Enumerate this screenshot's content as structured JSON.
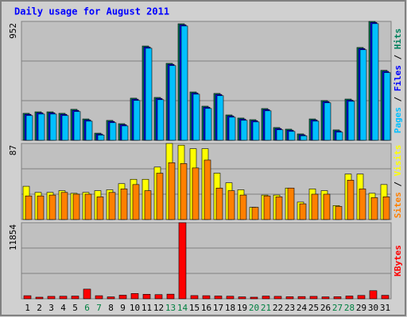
{
  "chart_data": {
    "type": "bar",
    "title": "Daily usage for August 2011",
    "legend_separator": " / ",
    "categories": [
      "1",
      "2",
      "3",
      "4",
      "5",
      "6",
      "7",
      "8",
      "9",
      "10",
      "11",
      "12",
      "13",
      "14",
      "15",
      "16",
      "17",
      "18",
      "19",
      "20",
      "21",
      "22",
      "23",
      "24",
      "25",
      "26",
      "27",
      "28",
      "29",
      "30",
      "31"
    ],
    "category_colors": [
      "#000000",
      "#000000",
      "#000000",
      "#000000",
      "#000000",
      "#008040",
      "#008040",
      "#000000",
      "#000000",
      "#000000",
      "#000000",
      "#000000",
      "#008040",
      "#008040",
      "#000000",
      "#000000",
      "#000000",
      "#000000",
      "#000000",
      "#008040",
      "#008040",
      "#000000",
      "#000000",
      "#000000",
      "#000000",
      "#000000",
      "#008040",
      "#008040",
      "#000000",
      "#000000",
      "#000000"
    ],
    "panels": [
      {
        "ylim": [
          0,
          952
        ],
        "yticks": [
          952
        ],
        "series": [
          {
            "name": "Hits",
            "color": "#00805c",
            "values": [
              216,
              228,
              228,
              216,
              248,
              171,
              57,
              159,
              133,
              337,
              755,
              343,
              616,
              933,
              387,
              273,
              375,
              203,
              178,
              165,
              254,
              102,
              89,
              51,
              171,
              318,
              83,
              330,
              743,
              952,
              560
            ]
          },
          {
            "name": "Files",
            "color": "#0000ff",
            "values": [
              208,
              220,
              220,
              208,
              240,
              163,
              50,
              151,
              125,
              329,
              747,
              335,
              608,
              925,
              379,
              265,
              367,
              195,
              170,
              157,
              246,
              94,
              81,
              44,
              163,
              310,
              75,
              322,
              735,
              944,
              552
            ]
          },
          {
            "name": "Pages",
            "color": "#00c0ff",
            "values": [
              198,
              210,
              210,
              198,
              230,
              153,
              42,
              141,
              115,
              319,
              737,
              325,
              598,
              915,
              369,
              255,
              357,
              185,
              160,
              147,
              236,
              84,
              71,
              36,
              153,
              300,
              65,
              312,
              725,
              934,
              542
            ]
          }
        ]
      },
      {
        "ylim": [
          0,
          87
        ],
        "yticks": [
          87
        ],
        "series": [
          {
            "name": "Visits",
            "color": "#ffff00",
            "values": [
              38,
              31,
              31,
              33,
              30,
              31,
              33,
              34,
              41,
              46,
              46,
              60,
              87,
              85,
              81,
              81,
              53,
              42,
              34,
              14,
              28,
              28,
              36,
              20,
              35,
              33,
              16,
              52,
              52,
              30,
              40
            ]
          },
          {
            "name": "Sites",
            "color": "#ff8000",
            "values": [
              27,
              27,
              28,
              31,
              29,
              29,
              26,
              31,
              35,
              40,
              33,
              53,
              65,
              64,
              59,
              68,
              36,
              33,
              28,
              14,
              27,
              26,
              36,
              18,
              29,
              29,
              15,
              45,
              35,
              25,
              26
            ]
          }
        ]
      },
      {
        "ylim": [
          0,
          11854
        ],
        "yticks": [
          11854
        ],
        "series": [
          {
            "name": "KBytes",
            "color": "#ff0000",
            "values": [
              480,
              250,
              380,
              400,
              420,
              1500,
              480,
              300,
              560,
              820,
              700,
              650,
              720,
              11854,
              500,
              480,
              430,
              400,
              300,
              250,
              420,
              380,
              320,
              350,
              380,
              300,
              320,
              430,
              520,
              1260,
              540
            ]
          }
        ]
      }
    ]
  }
}
